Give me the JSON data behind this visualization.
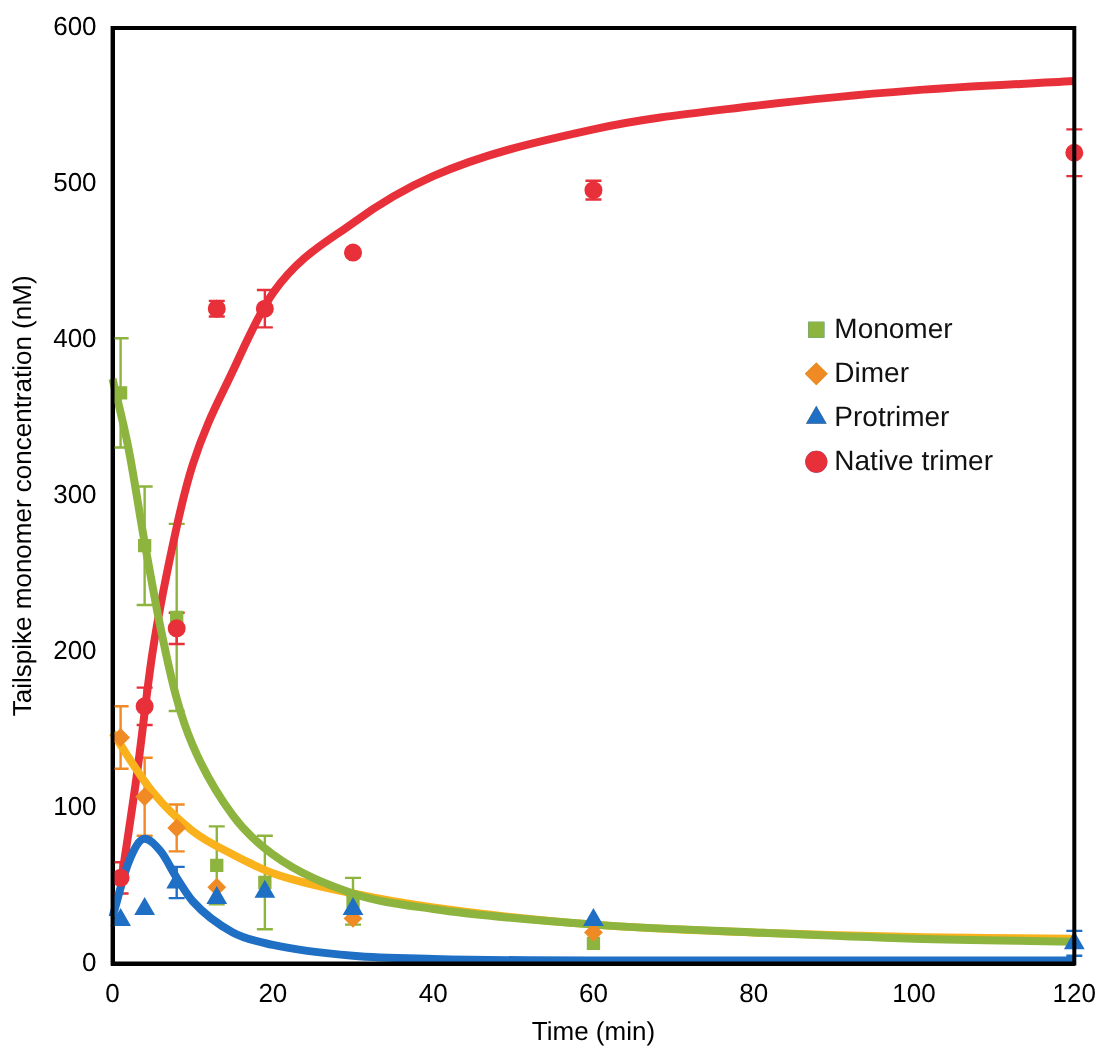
{
  "chart_data": {
    "type": "scatter",
    "xlabel": "Time (min)",
    "ylabel": "Tailspike monomer concentration (nM)",
    "xlim": [
      0,
      120
    ],
    "ylim": [
      0,
      600
    ],
    "xticks": [
      0,
      20,
      40,
      60,
      80,
      100,
      120
    ],
    "yticks": [
      0,
      100,
      200,
      300,
      400,
      500,
      600
    ],
    "grid": false,
    "legend": "right",
    "series": [
      {
        "name": "Monomer",
        "type": "scatter",
        "marker": "square",
        "color": "#8db43e",
        "x": [
          1,
          4,
          8,
          13,
          19,
          30,
          60
        ],
        "values": [
          366,
          268,
          222,
          63,
          52,
          40,
          13
        ],
        "errors": [
          35,
          38,
          60,
          25,
          30,
          15,
          null
        ]
      },
      {
        "name": "Dimer",
        "type": "scatter",
        "marker": "diamond",
        "color": "#f08a24",
        "x": [
          1,
          4,
          8,
          13,
          30,
          60
        ],
        "values": [
          145,
          107,
          87,
          49,
          29,
          20
        ],
        "errors": [
          20,
          25,
          15,
          null,
          null,
          null
        ]
      },
      {
        "name": "Protrimer",
        "type": "scatter",
        "marker": "triangle",
        "color": "#1f6fc5",
        "x": [
          1,
          4,
          8,
          13,
          19,
          30,
          60,
          120
        ],
        "values": [
          28,
          35,
          52,
          42,
          46,
          35,
          28,
          13
        ],
        "errors": [
          null,
          null,
          10,
          null,
          null,
          null,
          null,
          8
        ]
      },
      {
        "name": "Native trimer",
        "type": "scatter",
        "marker": "circle",
        "color": "#e8303a",
        "x": [
          1,
          4,
          8,
          13,
          19,
          30,
          60,
          120
        ],
        "values": [
          55,
          165,
          215,
          420,
          420,
          456,
          496,
          520
        ],
        "errors": [
          10,
          12,
          10,
          5,
          12,
          null,
          6,
          15
        ]
      },
      {
        "type": "line",
        "marker": "none",
        "color": "#8db43e",
        "x": [
          0,
          2,
          4,
          6,
          8,
          10,
          15,
          20,
          30,
          40,
          60,
          80,
          100,
          120
        ],
        "values": [
          375,
          330,
          270,
          215,
          170,
          140,
          95,
          70,
          45,
          35,
          25,
          20,
          16,
          14
        ]
      },
      {
        "type": "line",
        "marker": "none",
        "color": "#f9b21c",
        "x": [
          0,
          5,
          10,
          15,
          20,
          30,
          40,
          60,
          80,
          100,
          120
        ],
        "values": [
          148,
          110,
          85,
          70,
          58,
          45,
          36,
          25,
          20,
          17,
          16
        ]
      },
      {
        "type": "line",
        "marker": "none",
        "color": "#1f6fc5",
        "x": [
          0,
          2,
          4,
          6,
          8,
          10,
          15,
          20,
          30,
          40,
          60,
          120
        ],
        "values": [
          30,
          65,
          80,
          72,
          55,
          40,
          20,
          12,
          5,
          3,
          2,
          2
        ]
      },
      {
        "type": "line",
        "marker": "none",
        "color": "#e8303a",
        "x": [
          1,
          3,
          5,
          8,
          10,
          15,
          20,
          30,
          40,
          60,
          80,
          100,
          120
        ],
        "values": [
          50,
          120,
          200,
          280,
          320,
          380,
          430,
          475,
          505,
          535,
          550,
          560,
          566
        ]
      }
    ]
  }
}
